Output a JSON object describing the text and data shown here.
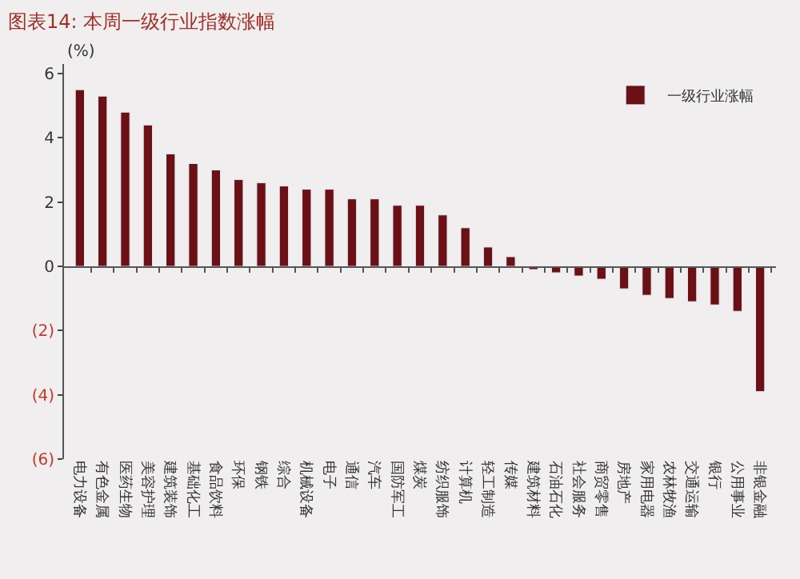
{
  "chart_data": {
    "type": "bar",
    "title": "图表14: 本周一级行业指数涨幅",
    "ylabel": "(%)",
    "categories": [
      "电力设备",
      "有色金属",
      "医药生物",
      "美容护理",
      "建筑装饰",
      "基础化工",
      "食品饮料",
      "环保",
      "钢铁",
      "综合",
      "机械设备",
      "电子",
      "通信",
      "汽车",
      "国防军工",
      "煤炭",
      "纺织服饰",
      "计算机",
      "轻工制造",
      "传媒",
      "建筑材料",
      "石油石化",
      "社会服务",
      "商贸零售",
      "房地产",
      "家用电器",
      "农林牧渔",
      "交通运输",
      "银行",
      "公用事业",
      "非银金融"
    ],
    "series": [
      {
        "name": "一级行业涨幅",
        "color": "#6b1015",
        "values": [
          5.5,
          5.3,
          4.8,
          4.4,
          3.5,
          3.2,
          3.0,
          2.7,
          2.6,
          2.5,
          2.4,
          2.4,
          2.1,
          2.1,
          1.9,
          1.9,
          1.6,
          1.2,
          0.6,
          0.3,
          -0.1,
          -0.2,
          -0.3,
          -0.4,
          -0.7,
          -0.9,
          -1.0,
          -1.1,
          -1.2,
          -1.4,
          -3.9
        ]
      }
    ],
    "ylim": [
      -6,
      6.3
    ],
    "yticks": [
      {
        "value": -6,
        "label": "(6)"
      },
      {
        "value": -4,
        "label": "(4)"
      },
      {
        "value": -2,
        "label": "(2)"
      },
      0,
      2,
      4,
      6
    ],
    "legend": "top right"
  }
}
